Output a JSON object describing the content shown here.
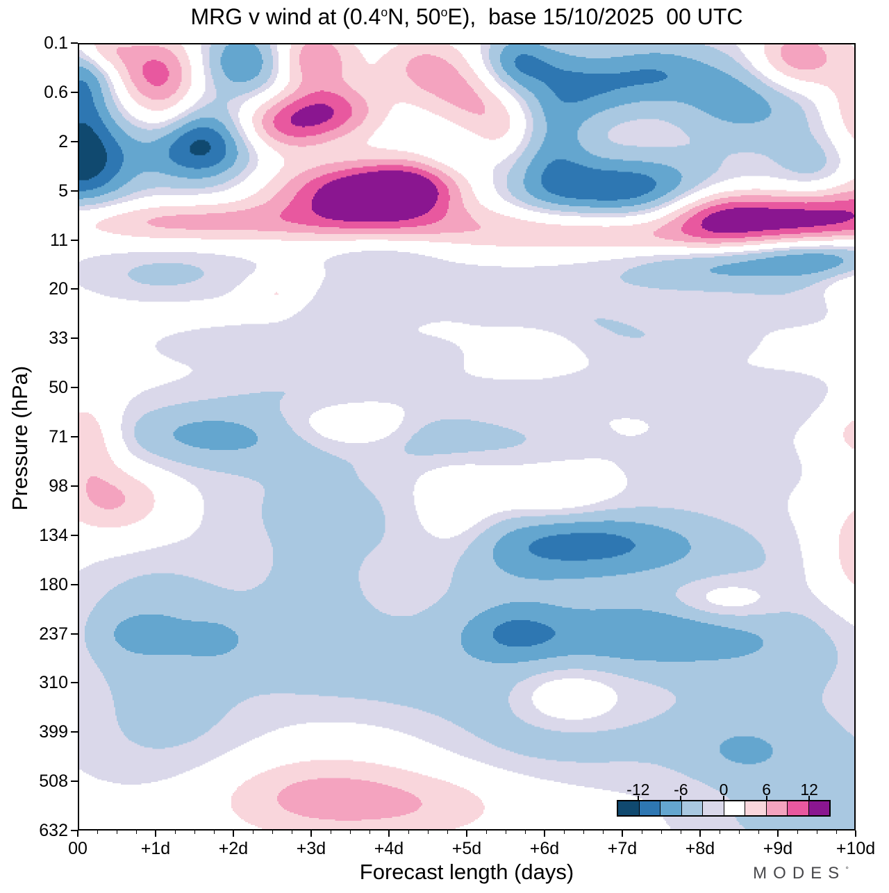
{
  "title": {
    "p1": "MRG v wind at (0.4",
    "sup1": "o",
    "p2": "N, 50",
    "sup2": "o",
    "p3": "E),  base 15/10/2025  00 UTC"
  },
  "branding": {
    "logo": "MODES",
    "logo_mark": "°"
  },
  "chart_data": {
    "type": "heatmap",
    "title": "MRG v wind at (0.4°N, 50°E),  base 15/10/2025  00 UTC",
    "xlabel": "Forecast length (days)",
    "ylabel": "Pressure (hPa)",
    "x_ticks": [
      "00",
      "+1d",
      "+2d",
      "+3d",
      "+4d",
      "+5d",
      "+6d",
      "+7d",
      "+8d",
      "+9d",
      "+10d"
    ],
    "x_range_days": [
      0,
      10
    ],
    "x_minor_step_days": 0.25,
    "y_tick_levels_hpa": [
      0.1,
      0.6,
      2,
      5,
      11,
      20,
      33,
      50,
      71,
      98,
      134,
      180,
      237,
      310,
      399,
      508,
      632
    ],
    "y_axis_layout": "17 pressure levels evenly spaced, 0.1 hPa at top, 632 hPa at bottom",
    "grid": false,
    "legend_position": "colorbar inside axes, bottom right",
    "colorbar": {
      "tick_labels": [
        "-12",
        "-6",
        "0",
        "6",
        "12"
      ],
      "levels": [
        -15,
        -12,
        -9,
        -6,
        -3,
        0,
        3,
        6,
        9,
        12,
        15
      ],
      "colors": [
        "#10496f",
        "#2e77b2",
        "#64a6cf",
        "#a9c8e1",
        "#dad8ea",
        "#ffffff",
        "#f9d6dc",
        "#f4a3bf",
        "#e8589f",
        "#8a1690"
      ]
    },
    "field_features": {
      "format": "[x_days, level_index(0=0.1hPa .. 16=632hPa), amplitude, sigma_x_days, sigma_level]",
      "note": "Gaussian-blob estimate of the filled contour anomaly field read from the plot",
      "blobs": [
        [
          0.0,
          2.4,
          -14,
          0.5,
          0.65
        ],
        [
          0.05,
          1.15,
          -7,
          0.28,
          0.6
        ],
        [
          1.55,
          2.05,
          -13.5,
          0.5,
          0.55
        ],
        [
          2.15,
          0.35,
          -9.5,
          0.45,
          0.5
        ],
        [
          0.1,
          0.5,
          -5,
          0.3,
          0.4
        ],
        [
          5.6,
          0.35,
          -6.5,
          0.3,
          0.45
        ],
        [
          6.1,
          1.9,
          -6.5,
          0.35,
          0.8
        ],
        [
          7.0,
          2.95,
          -11.5,
          0.95,
          0.5
        ],
        [
          6.6,
          0.9,
          -7,
          0.5,
          0.5
        ],
        [
          7.45,
          0.55,
          -6.5,
          0.5,
          0.45
        ],
        [
          8.5,
          1.15,
          -5,
          0.6,
          0.6
        ],
        [
          8.95,
          0.95,
          -3.5,
          0.85,
          0.8
        ],
        [
          9.55,
          2.5,
          -4.5,
          0.4,
          0.5
        ],
        [
          9.6,
          4.35,
          -7.5,
          0.65,
          0.3
        ],
        [
          8.35,
          4.5,
          -4.5,
          0.8,
          0.28
        ],
        [
          6.0,
          0.35,
          -3.5,
          0.4,
          0.4
        ],
        [
          4.85,
          2.35,
          -2.6,
          0.35,
          0.5
        ],
        [
          0.3,
          0.12,
          6,
          0.25,
          0.32
        ],
        [
          1.0,
          0.5,
          9.5,
          0.42,
          0.5
        ],
        [
          1.1,
          1.4,
          5,
          0.3,
          0.5
        ],
        [
          3.0,
          0.28,
          9.5,
          0.38,
          0.45
        ],
        [
          2.6,
          1.65,
          9,
          0.45,
          0.4
        ],
        [
          3.25,
          1.35,
          9.5,
          0.45,
          0.4
        ],
        [
          3.6,
          3.05,
          14.5,
          0.75,
          0.45
        ],
        [
          4.35,
          2.9,
          9,
          0.5,
          0.4
        ],
        [
          4.45,
          0.45,
          6.5,
          0.4,
          0.45
        ],
        [
          5.0,
          1.05,
          5.5,
          0.4,
          0.45
        ],
        [
          5.45,
          1.7,
          4.8,
          0.38,
          0.45
        ],
        [
          8.25,
          3.45,
          11,
          0.5,
          0.42
        ],
        [
          9.3,
          3.5,
          9.5,
          0.55,
          0.4
        ],
        [
          10.15,
          3.3,
          6.5,
          0.45,
          0.5
        ],
        [
          9.25,
          0.3,
          10.5,
          0.42,
          0.5
        ],
        [
          10.1,
          1.3,
          7,
          0.35,
          0.8
        ],
        [
          5.0,
          3.62,
          4.6,
          4.6,
          0.28
        ],
        [
          1.3,
          3.6,
          3.8,
          1.1,
          0.3
        ],
        [
          6.8,
          3.95,
          4.4,
          1.6,
          0.22
        ],
        [
          1.2,
          4.5,
          -2.2,
          0.8,
          0.3
        ],
        [
          3.9,
          4.25,
          -2.4,
          0.6,
          0.25
        ],
        [
          4.6,
          4.9,
          -2.2,
          1.0,
          0.3
        ],
        [
          7.6,
          4.8,
          -2.4,
          1.2,
          0.3
        ],
        [
          9.3,
          5.3,
          -2.3,
          0.8,
          0.3
        ],
        [
          1.05,
          4.85,
          -2.2,
          0.7,
          0.3
        ],
        [
          3.4,
          5.45,
          -2.2,
          0.7,
          0.3
        ],
        [
          6.4,
          5.5,
          -2.2,
          1.0,
          0.3
        ],
        [
          10.05,
          5.05,
          4.4,
          0.3,
          0.35
        ],
        [
          2.55,
          5.1,
          4.0,
          0.25,
          0.25
        ],
        [
          7.3,
          6.05,
          -2.6,
          1.0,
          0.35
        ],
        [
          2.0,
          6.15,
          -2.2,
          0.8,
          0.3
        ],
        [
          4.1,
          6.35,
          -2.0,
          0.7,
          0.3
        ],
        [
          5.85,
          6.3,
          3.9,
          0.35,
          0.3
        ],
        [
          2.9,
          7.0,
          -2.3,
          1.0,
          0.3
        ],
        [
          6.3,
          7.05,
          -2.4,
          0.9,
          0.3
        ],
        [
          8.9,
          7.3,
          -2.6,
          1.0,
          0.45
        ],
        [
          1.6,
          7.9,
          -4.8,
          0.85,
          0.45
        ],
        [
          2.6,
          8.15,
          -3.0,
          1.4,
          0.55
        ],
        [
          0.1,
          8.1,
          6.5,
          0.3,
          0.6
        ],
        [
          3.5,
          7.8,
          4.2,
          0.55,
          0.3
        ],
        [
          4.65,
          8.0,
          -3.2,
          0.5,
          0.4
        ],
        [
          5.7,
          8.05,
          -2.5,
          0.7,
          0.4
        ],
        [
          10.1,
          7.85,
          4.5,
          0.4,
          0.5
        ],
        [
          8.3,
          8.6,
          -2.4,
          0.9,
          0.5
        ],
        [
          0.45,
          9.3,
          6.5,
          0.5,
          0.5
        ],
        [
          3.3,
          9.45,
          -2.8,
          1.2,
          0.6
        ],
        [
          4.85,
          9.7,
          4.3,
          0.4,
          0.8
        ],
        [
          6.1,
          9.2,
          3.6,
          0.5,
          0.35
        ],
        [
          6.55,
          10.15,
          -7,
          1.0,
          0.45
        ],
        [
          7.6,
          10.4,
          -3.0,
          1.8,
          0.75
        ],
        [
          5.2,
          10.6,
          -2.8,
          0.9,
          0.6
        ],
        [
          10.2,
          10.4,
          6.5,
          0.5,
          0.9
        ],
        [
          8.35,
          11.35,
          4.3,
          0.5,
          0.32
        ],
        [
          2.95,
          10.9,
          -2.9,
          0.55,
          1.1
        ],
        [
          0.95,
          11.6,
          -2.9,
          0.7,
          0.9
        ],
        [
          6.4,
          12.1,
          -2.9,
          2.6,
          0.85
        ],
        [
          5.6,
          12.0,
          -5.8,
          0.5,
          0.42
        ],
        [
          7.3,
          12.05,
          -5.5,
          0.9,
          0.45
        ],
        [
          1.2,
          12.3,
          -3.2,
          0.8,
          1.0
        ],
        [
          0.55,
          12.05,
          -1.8,
          0.3,
          0.35
        ],
        [
          1.85,
          12.1,
          -1.8,
          0.3,
          0.35
        ],
        [
          3.0,
          12.6,
          -2.2,
          0.8,
          0.7
        ],
        [
          4.3,
          12.9,
          -2.2,
          0.8,
          0.6
        ],
        [
          6.3,
          13.35,
          4.6,
          0.45,
          0.4
        ],
        [
          5.4,
          13.6,
          -2.4,
          0.8,
          0.7
        ],
        [
          9.0,
          12.3,
          -2.8,
          0.9,
          0.8
        ],
        [
          8.6,
          14.2,
          -3.3,
          1.3,
          0.8
        ],
        [
          8.55,
          14.45,
          -2.8,
          0.5,
          0.45
        ],
        [
          6.3,
          14.3,
          -2.5,
          0.9,
          0.5
        ],
        [
          1.1,
          14.1,
          -2.9,
          0.9,
          0.8
        ],
        [
          3.1,
          15.35,
          7.2,
          0.95,
          0.6
        ],
        [
          4.6,
          15.55,
          3.5,
          0.8,
          0.5
        ],
        [
          9.9,
          15.45,
          -2.8,
          0.8,
          0.9
        ],
        [
          8.8,
          15.9,
          -2.2,
          0.8,
          0.5
        ]
      ]
    }
  }
}
